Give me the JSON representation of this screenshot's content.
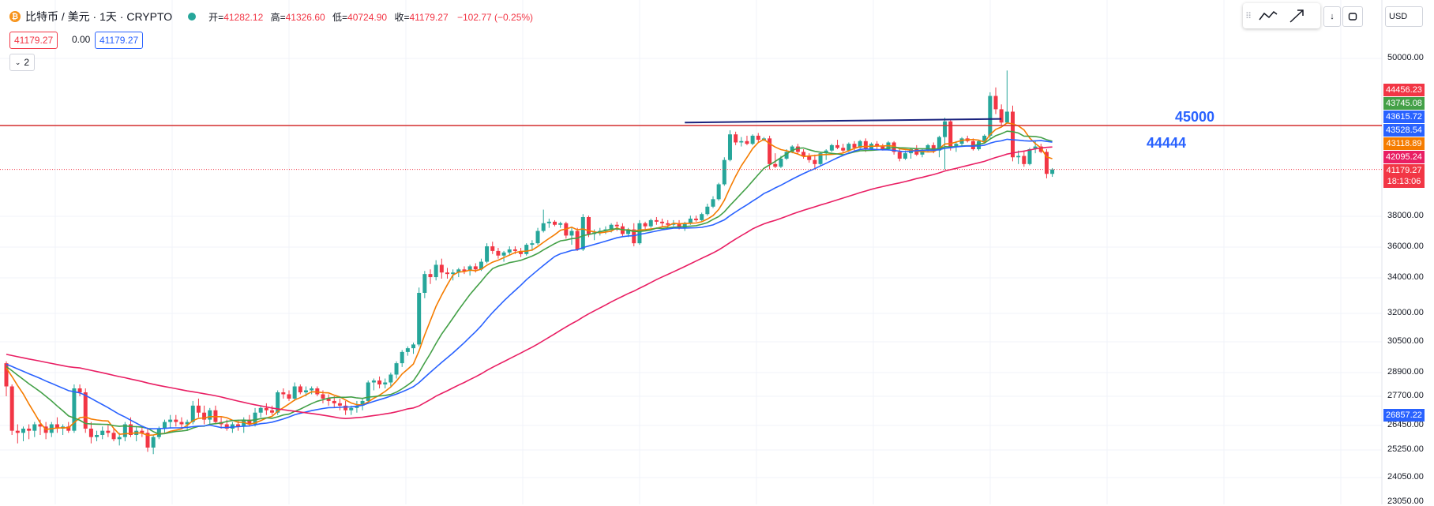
{
  "header": {
    "symbol": "比特币 / 美元 · 1天 · CRYPTO",
    "coin_icon": "bitcoin-icon",
    "status_color": "#26a69a",
    "open_label": "开=",
    "open": "41282.12",
    "high_label": "高=",
    "high": "41326.60",
    "low_label": "低=",
    "low": "40724.90",
    "close_label": "收=",
    "close": "41179.27",
    "change": "−102.77 (−0.25%)"
  },
  "price_boxes": {
    "sell": "41179.27",
    "spread": "0.00",
    "buy": "41179.27"
  },
  "indicators_toggle": {
    "count": "2",
    "icon": "chevron-down-icon"
  },
  "toolbar": {
    "currency": "USD",
    "icons": [
      "drag-handle-icon",
      "trend-line-icon",
      "arrow-line-icon",
      "arrow-down-icon",
      "rectangle-icon"
    ]
  },
  "colors": {
    "up": "#26a69a",
    "down": "#f23645",
    "ma_orange": "#f57c00",
    "ma_green": "#43a047",
    "ma_blue": "#2962ff",
    "ma_red": "#e91e63",
    "navy_line": "#1a237e"
  },
  "axis": {
    "ticks": [
      "50000.00",
      "38000.00",
      "36000.00",
      "34000.00",
      "32000.00",
      "30500.00",
      "28900.00",
      "27700.00",
      "26450.00",
      "25250.00",
      "24050.00",
      "23050.00"
    ],
    "badges": [
      {
        "text": "44456.23",
        "color": "#f23645"
      },
      {
        "text": "43745.08",
        "color": "#43a047"
      },
      {
        "text": "43615.72",
        "color": "#2962ff"
      },
      {
        "text": "43528.54",
        "color": "#2962ff"
      },
      {
        "text": "43118.89",
        "color": "#f57c00"
      },
      {
        "text": "42095.24",
        "color": "#e91e63"
      },
      {
        "text": "41179.27",
        "color": "#f23645"
      },
      {
        "text": "18:13:06",
        "color": "#f23645"
      },
      {
        "text": "26857.22",
        "color": "#2962ff"
      }
    ]
  },
  "annotations": {
    "line_label_1": "45000",
    "line_label_2": "44444"
  },
  "chart_data": {
    "type": "candlestick",
    "y_scale": "nonlinear",
    "horizontal_line": 44456.23,
    "trend_line": [
      [
        120,
        44700
      ],
      [
        176,
        45000
      ]
    ],
    "candles": [
      [
        29400,
        29500,
        27700,
        28200
      ],
      [
        28200,
        28300,
        26000,
        26200
      ],
      [
        26200,
        26500,
        25600,
        26100
      ],
      [
        26100,
        26400,
        25700,
        26300
      ],
      [
        26300,
        26500,
        25800,
        26200
      ],
      [
        26200,
        26600,
        25900,
        26500
      ],
      [
        26500,
        26700,
        26000,
        26400
      ],
      [
        26400,
        26600,
        25800,
        26100
      ],
      [
        26100,
        26600,
        25900,
        26500
      ],
      [
        26500,
        26800,
        26100,
        26300
      ],
      [
        26300,
        26500,
        26000,
        26400
      ],
      [
        26400,
        26600,
        26100,
        26200
      ],
      [
        26200,
        28300,
        26100,
        28100
      ],
      [
        28100,
        28300,
        27700,
        27900
      ],
      [
        27900,
        28100,
        26100,
        26300
      ],
      [
        26300,
        26600,
        25600,
        25900
      ],
      [
        25900,
        26200,
        25700,
        26000
      ],
      [
        26000,
        26400,
        25800,
        26200
      ],
      [
        26200,
        26500,
        25900,
        26100
      ],
      [
        26100,
        26300,
        25700,
        25800
      ],
      [
        25800,
        26100,
        25500,
        25900
      ],
      [
        25900,
        26600,
        25700,
        26500
      ],
      [
        26500,
        26800,
        25900,
        26000
      ],
      [
        26000,
        26400,
        25700,
        26200
      ],
      [
        26200,
        26400,
        25900,
        26100
      ],
      [
        26100,
        26300,
        25200,
        25400
      ],
      [
        25400,
        26000,
        25100,
        25900
      ],
      [
        25900,
        26400,
        25800,
        26300
      ],
      [
        26300,
        26700,
        26100,
        26600
      ],
      [
        26600,
        26900,
        26300,
        26700
      ],
      [
        26700,
        26900,
        26400,
        26600
      ],
      [
        26600,
        26800,
        26300,
        26500
      ],
      [
        26500,
        26700,
        26200,
        26600
      ],
      [
        26600,
        27500,
        26500,
        27300
      ],
      [
        27300,
        27600,
        26800,
        27000
      ],
      [
        27000,
        27300,
        26500,
        26700
      ],
      [
        26700,
        27200,
        26500,
        27100
      ],
      [
        27100,
        27300,
        26500,
        26600
      ],
      [
        26600,
        26800,
        26300,
        26500
      ],
      [
        26500,
        26700,
        26200,
        26300
      ],
      [
        26300,
        26600,
        26100,
        26500
      ],
      [
        26500,
        26700,
        26200,
        26400
      ],
      [
        26400,
        26800,
        26100,
        26700
      ],
      [
        26700,
        26900,
        26400,
        26500
      ],
      [
        26500,
        27200,
        26400,
        27000
      ],
      [
        27000,
        27300,
        26800,
        27200
      ],
      [
        27200,
        27400,
        26900,
        27100
      ],
      [
        27100,
        27300,
        26900,
        27000
      ],
      [
        27000,
        28000,
        26900,
        27900
      ],
      [
        27900,
        28100,
        27600,
        27800
      ],
      [
        27800,
        28000,
        27500,
        27600
      ],
      [
        27600,
        28400,
        27500,
        28200
      ],
      [
        28200,
        28300,
        27800,
        27900
      ],
      [
        27900,
        28200,
        27700,
        28000
      ],
      [
        28000,
        28200,
        27800,
        28100
      ],
      [
        28100,
        28200,
        27700,
        27800
      ],
      [
        27800,
        28000,
        27400,
        27600
      ],
      [
        27600,
        27800,
        27300,
        27500
      ],
      [
        27500,
        27700,
        27200,
        27400
      ],
      [
        27400,
        27600,
        27100,
        27300
      ],
      [
        27300,
        27500,
        26900,
        27100
      ],
      [
        27100,
        27300,
        26900,
        27200
      ],
      [
        27200,
        27500,
        27000,
        27300
      ],
      [
        27300,
        27600,
        27100,
        27500
      ],
      [
        27500,
        28500,
        27400,
        28400
      ],
      [
        28400,
        28600,
        28000,
        28500
      ],
      [
        28500,
        28700,
        28100,
        28300
      ],
      [
        28300,
        28600,
        28100,
        28400
      ],
      [
        28400,
        28900,
        28200,
        28800
      ],
      [
        28800,
        29500,
        28600,
        29400
      ],
      [
        29400,
        30100,
        29200,
        30000
      ],
      [
        30000,
        30300,
        29800,
        30200
      ],
      [
        30200,
        30500,
        29900,
        30400
      ],
      [
        30400,
        33500,
        30300,
        33200
      ],
      [
        33200,
        34500,
        32900,
        34300
      ],
      [
        34300,
        34600,
        33700,
        34100
      ],
      [
        34100,
        35200,
        33900,
        34900
      ],
      [
        34900,
        35300,
        34000,
        34400
      ],
      [
        34400,
        34700,
        34000,
        34300
      ],
      [
        34300,
        34600,
        33900,
        34400
      ],
      [
        34400,
        34700,
        34100,
        34600
      ],
      [
        34600,
        34800,
        34300,
        34500
      ],
      [
        34500,
        34900,
        34200,
        34800
      ],
      [
        34800,
        35000,
        34400,
        34600
      ],
      [
        34600,
        35300,
        34500,
        35100
      ],
      [
        35100,
        36300,
        35000,
        36100
      ],
      [
        36100,
        36400,
        35600,
        35800
      ],
      [
        35800,
        36000,
        35300,
        35500
      ],
      [
        35500,
        35800,
        35100,
        35700
      ],
      [
        35700,
        36100,
        35500,
        35900
      ],
      [
        35900,
        36100,
        35600,
        35800
      ],
      [
        35800,
        36000,
        35400,
        35600
      ],
      [
        35600,
        36300,
        35500,
        36200
      ],
      [
        36200,
        36500,
        35800,
        36300
      ],
      [
        36300,
        37300,
        36200,
        37100
      ],
      [
        37100,
        38500,
        37000,
        37600
      ],
      [
        37600,
        37900,
        37300,
        37700
      ],
      [
        37700,
        37800,
        37400,
        37500
      ],
      [
        37500,
        37700,
        37300,
        37600
      ],
      [
        37600,
        37700,
        36600,
        36800
      ],
      [
        36800,
        37300,
        36200,
        37100
      ],
      [
        37100,
        37300,
        35800,
        35900
      ],
      [
        35900,
        38200,
        35800,
        38000
      ],
      [
        38000,
        38100,
        36700,
        36900
      ],
      [
        36900,
        37200,
        36500,
        37000
      ],
      [
        37000,
        37300,
        36800,
        37100
      ],
      [
        37100,
        37400,
        36900,
        37200
      ],
      [
        37200,
        37600,
        37000,
        37500
      ],
      [
        37500,
        37700,
        37100,
        37400
      ],
      [
        37400,
        37600,
        36700,
        36900
      ],
      [
        36900,
        37300,
        36700,
        37200
      ],
      [
        37200,
        37600,
        36100,
        36300
      ],
      [
        36300,
        37800,
        36200,
        37600
      ],
      [
        37600,
        37700,
        37200,
        37400
      ],
      [
        37400,
        37900,
        37300,
        37800
      ],
      [
        37800,
        38000,
        37500,
        37700
      ],
      [
        37700,
        37900,
        37400,
        37600
      ],
      [
        37600,
        37800,
        37300,
        37500
      ],
      [
        37500,
        37800,
        37400,
        37600
      ],
      [
        37600,
        37800,
        37200,
        37300
      ],
      [
        37300,
        37700,
        37100,
        37600
      ],
      [
        37600,
        38100,
        37500,
        37900
      ],
      [
        37900,
        38100,
        37700,
        37800
      ],
      [
        37800,
        38300,
        37700,
        38200
      ],
      [
        38200,
        38900,
        38100,
        38700
      ],
      [
        38700,
        39400,
        38600,
        39200
      ],
      [
        39200,
        40300,
        39100,
        40200
      ],
      [
        40200,
        42100,
        40100,
        41900
      ],
      [
        41900,
        44100,
        41800,
        43800
      ],
      [
        43800,
        44000,
        43000,
        43200
      ],
      [
        43200,
        43600,
        42900,
        43300
      ],
      [
        43300,
        43700,
        43000,
        43100
      ],
      [
        43100,
        43800,
        43000,
        43700
      ],
      [
        43700,
        43900,
        43200,
        43400
      ],
      [
        43400,
        43600,
        43300,
        43500
      ],
      [
        43500,
        43700,
        41200,
        41600
      ],
      [
        41600,
        42400,
        41300,
        41400
      ],
      [
        41400,
        42200,
        41300,
        42000
      ],
      [
        42000,
        42700,
        41900,
        42500
      ],
      [
        42500,
        43000,
        42400,
        42900
      ],
      [
        42900,
        43100,
        42300,
        42500
      ],
      [
        42500,
        42700,
        42000,
        42200
      ],
      [
        42200,
        42400,
        41700,
        41900
      ],
      [
        41900,
        42300,
        41300,
        41600
      ],
      [
        41600,
        42500,
        41500,
        42400
      ],
      [
        42400,
        42700,
        41900,
        42600
      ],
      [
        42600,
        43100,
        42500,
        43000
      ],
      [
        43000,
        43400,
        42700,
        42800
      ],
      [
        42800,
        43100,
        42400,
        42600
      ],
      [
        42600,
        43200,
        42500,
        43100
      ],
      [
        43100,
        43300,
        42600,
        42800
      ],
      [
        42800,
        43400,
        42700,
        43300
      ],
      [
        43300,
        43500,
        42500,
        42700
      ],
      [
        42700,
        43200,
        42600,
        43100
      ],
      [
        43100,
        43300,
        42700,
        42900
      ],
      [
        42900,
        43100,
        42600,
        42700
      ],
      [
        42700,
        43300,
        42600,
        43200
      ],
      [
        43200,
        43300,
        42300,
        42500
      ],
      [
        42500,
        42800,
        41800,
        42000
      ],
      [
        42000,
        42600,
        41900,
        42400
      ],
      [
        42400,
        42800,
        42000,
        42700
      ],
      [
        42700,
        43000,
        42200,
        42300
      ],
      [
        42300,
        42700,
        42100,
        42600
      ],
      [
        42600,
        43100,
        42500,
        43000
      ],
      [
        43000,
        43200,
        42400,
        42600
      ],
      [
        42600,
        43700,
        42100,
        43600
      ],
      [
        43600,
        45100,
        41200,
        44800
      ],
      [
        44800,
        44900,
        42600,
        42900
      ],
      [
        42900,
        43300,
        42500,
        43100
      ],
      [
        43100,
        43600,
        42900,
        43500
      ],
      [
        43500,
        43700,
        43200,
        43300
      ],
      [
        43300,
        43500,
        42600,
        42700
      ],
      [
        42700,
        43400,
        42600,
        43300
      ],
      [
        43300,
        43800,
        43100,
        43700
      ],
      [
        43700,
        47200,
        43500,
        46900
      ],
      [
        46900,
        47600,
        45400,
        45800
      ],
      [
        45800,
        46200,
        44500,
        44700
      ],
      [
        44700,
        49000,
        44600,
        45600
      ],
      [
        45600,
        46100,
        41800,
        42100
      ],
      [
        42100,
        42600,
        41600,
        42200
      ],
      [
        42200,
        42600,
        41400,
        41600
      ],
      [
        41600,
        42800,
        41500,
        42700
      ],
      [
        42700,
        43300,
        42400,
        42900
      ],
      [
        42900,
        43100,
        42400,
        42500
      ],
      [
        42500,
        42700,
        40600,
        40900
      ],
      [
        40900,
        41300,
        40700,
        41200
      ]
    ]
  }
}
